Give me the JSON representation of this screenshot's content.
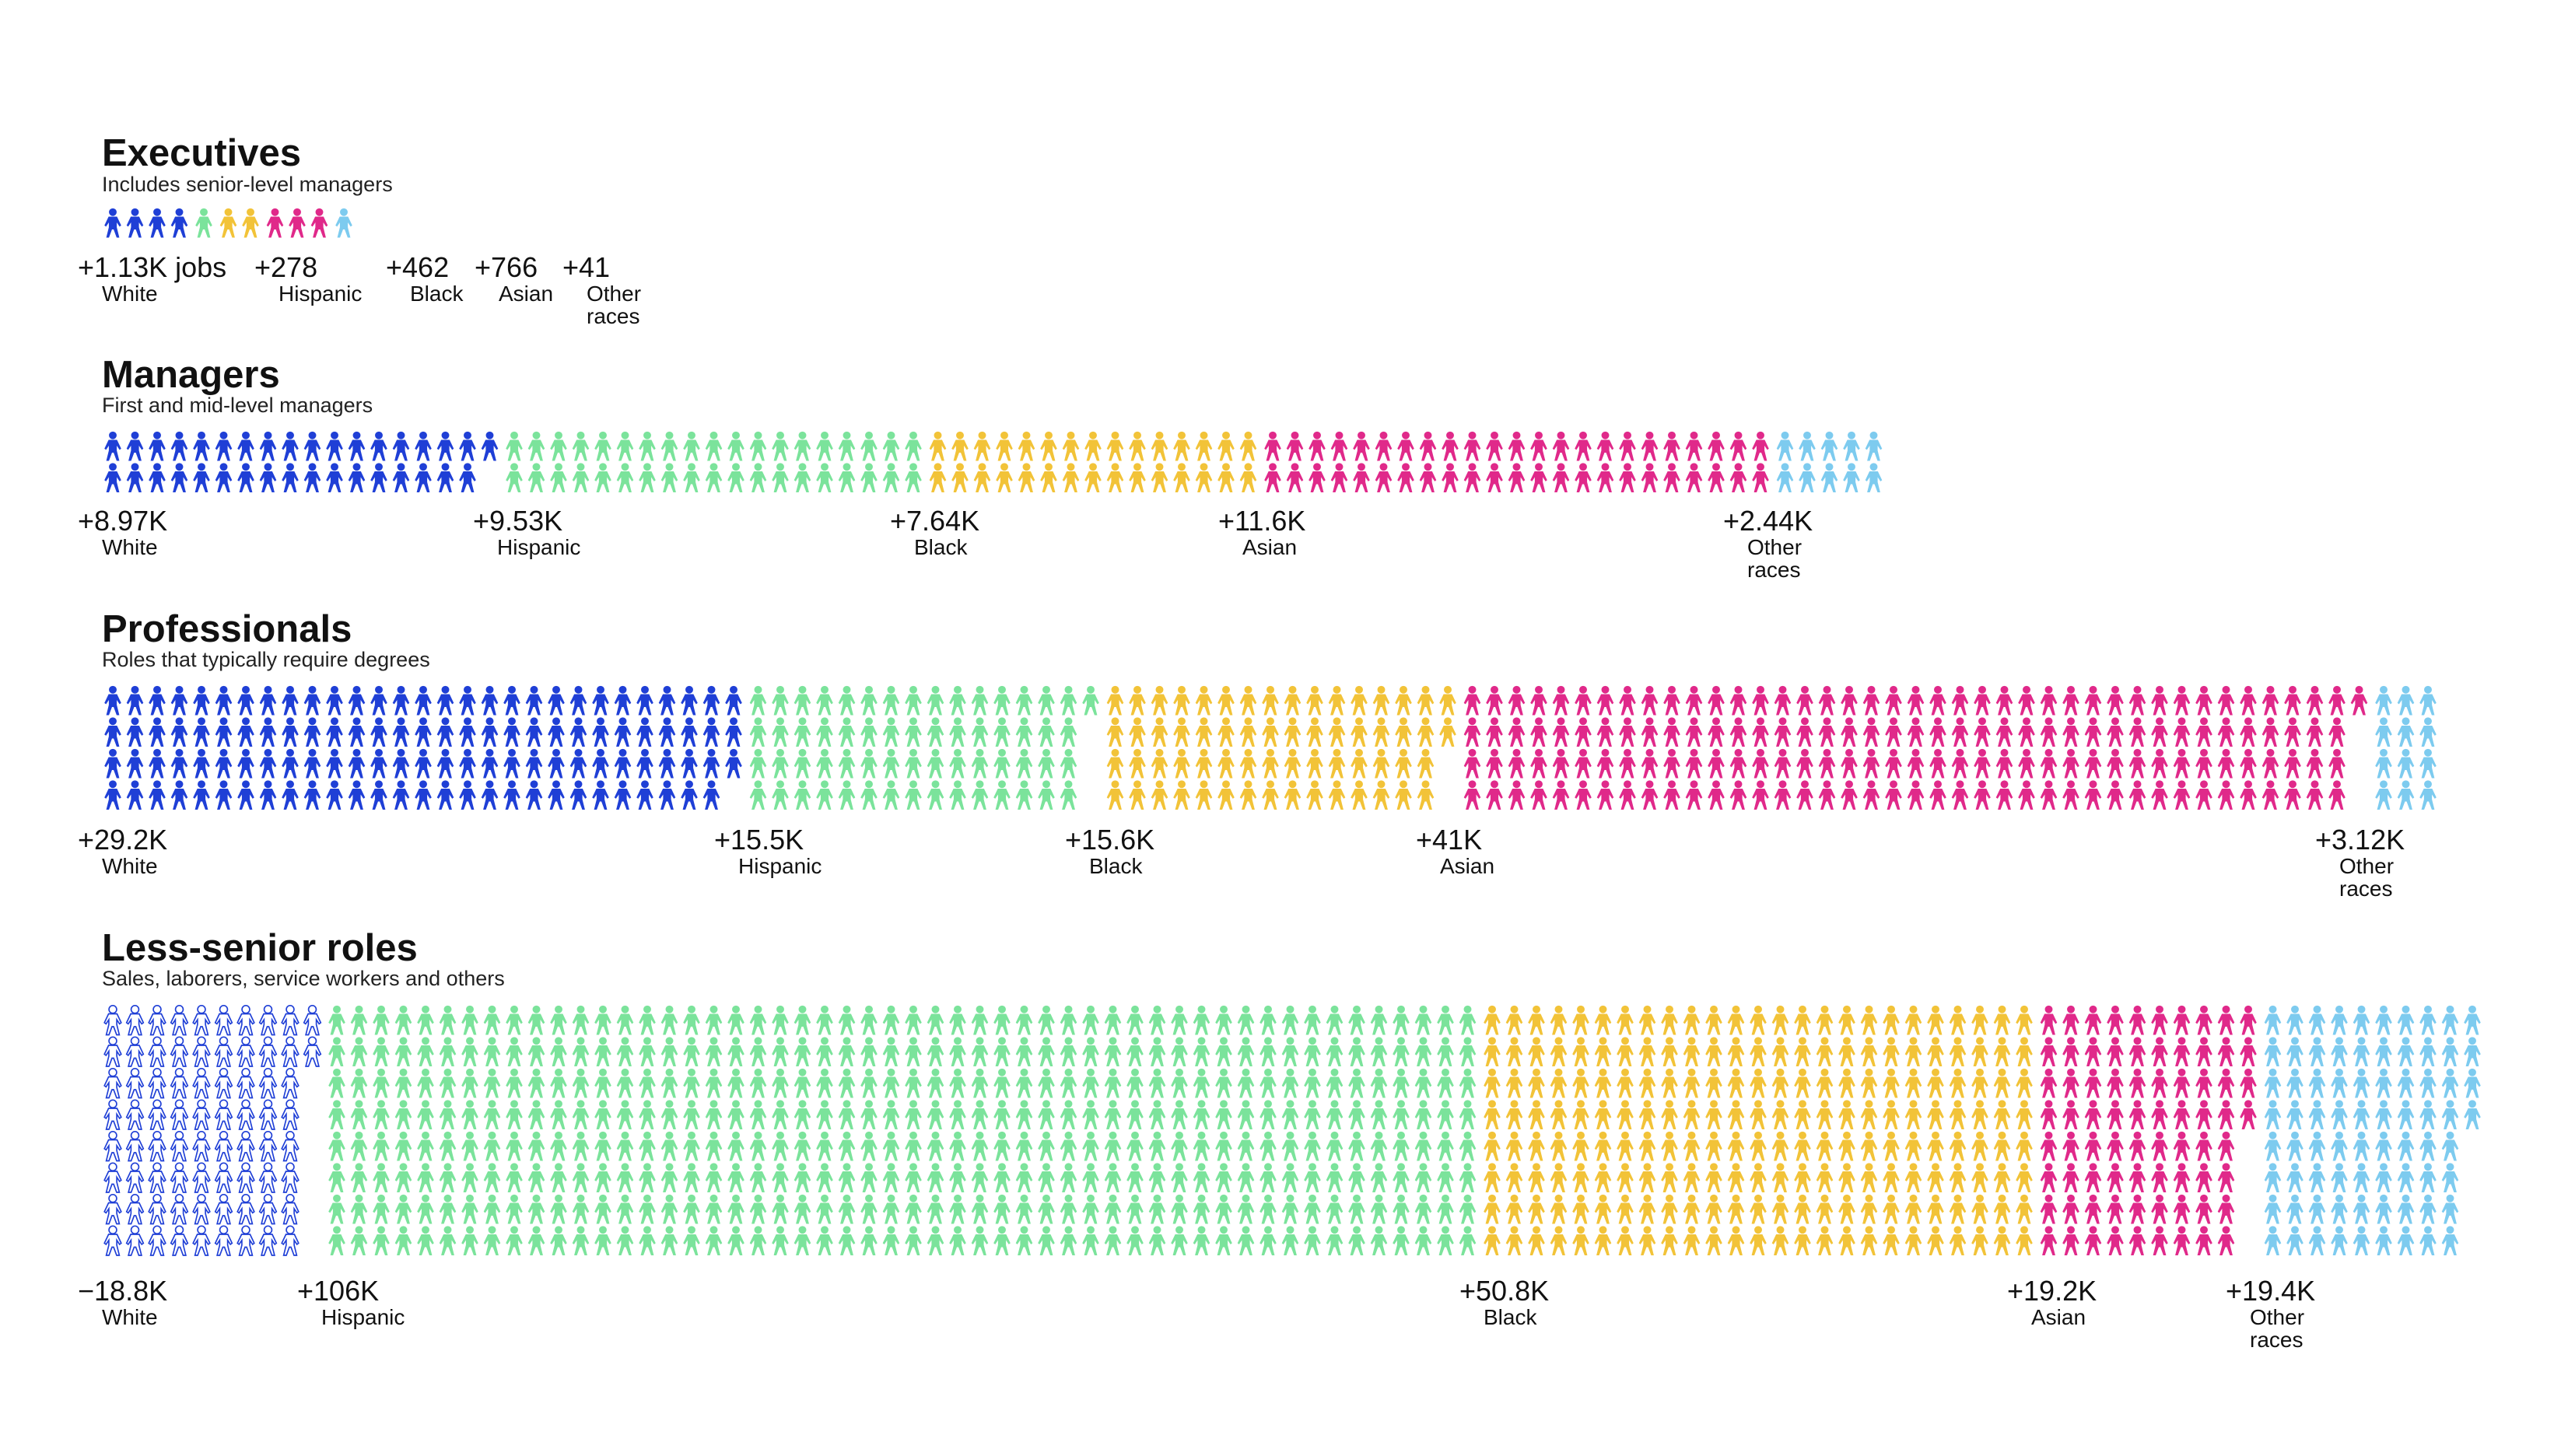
{
  "chart_data": {
    "type": "pictogram",
    "unit": "Each figure represents a group of jobs",
    "categories": [
      "White",
      "Hispanic",
      "Black",
      "Asian",
      "Other races"
    ],
    "colors": {
      "White": "#1f3fd6",
      "Hispanic": "#7be39b",
      "Black": "#f2c338",
      "Asian": "#e0298a",
      "Other races": "#7dcbef"
    },
    "sections": [
      {
        "title": "Executives",
        "subtitle": "Includes senior-level managers",
        "groups": [
          {
            "category": "White",
            "value_label": "+1.13K jobs",
            "label": "White",
            "count": 4,
            "negative": false
          },
          {
            "category": "Hispanic",
            "value_label": "+278",
            "label": "Hispanic",
            "count": 1,
            "negative": false
          },
          {
            "category": "Black",
            "value_label": "+462",
            "label": "Black",
            "count": 2,
            "negative": false
          },
          {
            "category": "Asian",
            "value_label": "+766",
            "label": "Asian",
            "count": 3,
            "negative": false
          },
          {
            "category": "Other races",
            "value_label": "+41",
            "label": "Other races",
            "count": 1,
            "negative": false
          }
        ]
      },
      {
        "title": "Managers",
        "subtitle": "First and mid-level managers",
        "groups": [
          {
            "category": "White",
            "value_label": "+8.97K",
            "label": "White",
            "count": 35,
            "negative": false
          },
          {
            "category": "Hispanic",
            "value_label": "+9.53K",
            "label": "Hispanic",
            "count": 38,
            "negative": false
          },
          {
            "category": "Black",
            "value_label": "+7.64K",
            "label": "Black",
            "count": 30,
            "negative": false
          },
          {
            "category": "Asian",
            "value_label": "+11.6K",
            "label": "Asian",
            "count": 46,
            "negative": false
          },
          {
            "category": "Other races",
            "value_label": "+2.44K",
            "label": "Other races",
            "count": 10,
            "negative": false
          }
        ]
      },
      {
        "title": "Professionals",
        "subtitle": "Roles that typically require degrees",
        "groups": [
          {
            "category": "White",
            "value_label": "+29.2K",
            "label": "White",
            "count": 115,
            "negative": false
          },
          {
            "category": "Hispanic",
            "value_label": "+15.5K",
            "label": "Hispanic",
            "count": 61,
            "negative": false
          },
          {
            "category": "Black",
            "value_label": "+15.6K",
            "label": "Black",
            "count": 62,
            "negative": false
          },
          {
            "category": "Asian",
            "value_label": "+41K",
            "label": "Asian",
            "count": 161,
            "negative": false
          },
          {
            "category": "Other races",
            "value_label": "+3.12K",
            "label": "Other races",
            "count": 12,
            "negative": false
          }
        ]
      },
      {
        "title": "Less-senior roles",
        "subtitle": "Sales, laborers, service workers and others",
        "groups": [
          {
            "category": "White",
            "value_label": "−18.8K",
            "label": "White",
            "count": 74,
            "negative": true
          },
          {
            "category": "Hispanic",
            "value_label": "+106K",
            "label": "Hispanic",
            "count": 416,
            "negative": false
          },
          {
            "category": "Black",
            "value_label": "+50.8K",
            "label": "Black",
            "count": 200,
            "negative": false
          },
          {
            "category": "Asian",
            "value_label": "+19.2K",
            "label": "Asian",
            "count": 76,
            "negative": false
          },
          {
            "category": "Other races",
            "value_label": "+19.4K",
            "label": "Other races",
            "count": 76,
            "negative": false
          }
        ]
      }
    ]
  }
}
